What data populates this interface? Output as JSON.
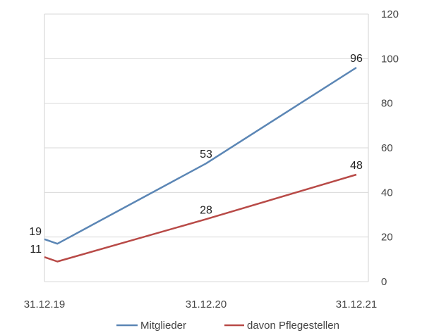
{
  "chart_data": {
    "type": "line",
    "categories": [
      "31.12.19",
      "31.12.20",
      "31.12.21"
    ],
    "x_values": [
      0,
      1,
      2
    ],
    "series": [
      {
        "name": "Mitglieder",
        "color": "#5b86b5",
        "points": [
          [
            0,
            19
          ],
          [
            0.08,
            17
          ],
          [
            1,
            53
          ],
          [
            2,
            96
          ]
        ],
        "labels": [
          {
            "x": 0,
            "y": 19,
            "text": "19"
          },
          {
            "x": 1,
            "y": 53,
            "text": "53"
          },
          {
            "x": 2,
            "y": 96,
            "text": "96"
          }
        ]
      },
      {
        "name": "davon Pflegestellen",
        "color": "#b84a47",
        "points": [
          [
            0,
            11
          ],
          [
            0.08,
            9
          ],
          [
            1,
            28
          ],
          [
            2,
            48
          ]
        ],
        "labels": [
          {
            "x": 0,
            "y": 11,
            "text": "11"
          },
          {
            "x": 1,
            "y": 28,
            "text": "28"
          },
          {
            "x": 2,
            "y": 48,
            "text": "48"
          }
        ]
      }
    ],
    "yaxis": {
      "position": "right",
      "ticks": [
        0,
        20,
        40,
        60,
        80,
        100,
        120
      ],
      "ylim": [
        0,
        120
      ]
    },
    "grid": true,
    "legend": "bottom",
    "title": "",
    "xlabel": "",
    "ylabel": ""
  }
}
